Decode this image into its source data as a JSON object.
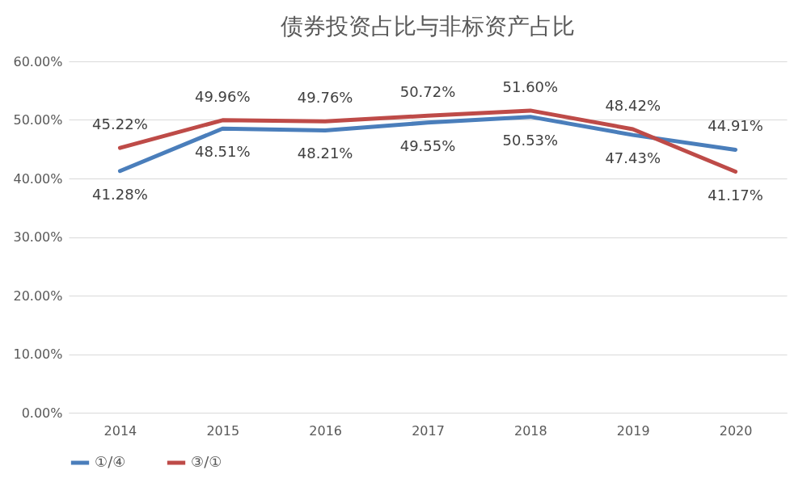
{
  "chart_data": {
    "type": "line",
    "title": "债券投资占比与非标资产占比",
    "categories": [
      "2014",
      "2015",
      "2016",
      "2017",
      "2018",
      "2019",
      "2020"
    ],
    "series": [
      {
        "name": "①/④",
        "color": "#4a7ebb",
        "values": [
          41.28,
          48.51,
          48.21,
          49.55,
          50.53,
          47.43,
          44.91
        ],
        "value_labels": [
          "41.28%",
          "48.51%",
          "48.21%",
          "49.55%",
          "50.53%",
          "47.43%",
          "44.91%"
        ]
      },
      {
        "name": "③/①",
        "color": "#be4b48",
        "values": [
          45.22,
          49.96,
          49.76,
          50.72,
          51.6,
          48.42,
          41.17
        ],
        "value_labels": [
          "45.22%",
          "49.96%",
          "49.76%",
          "50.72%",
          "51.60%",
          "48.42%",
          "41.17%"
        ]
      }
    ],
    "ylim": [
      0,
      60
    ],
    "yticks": [
      {
        "value": 0,
        "label": "0.00%"
      },
      {
        "value": 10,
        "label": "10.00%"
      },
      {
        "value": 20,
        "label": "20.00%"
      },
      {
        "value": 30,
        "label": "30.00%"
      },
      {
        "value": 40,
        "label": "40.00%"
      },
      {
        "value": 50,
        "label": "50.00%"
      },
      {
        "value": 60,
        "label": "60.00%"
      }
    ],
    "grid": "y",
    "legend": "bottom",
    "line_style": "solid"
  }
}
